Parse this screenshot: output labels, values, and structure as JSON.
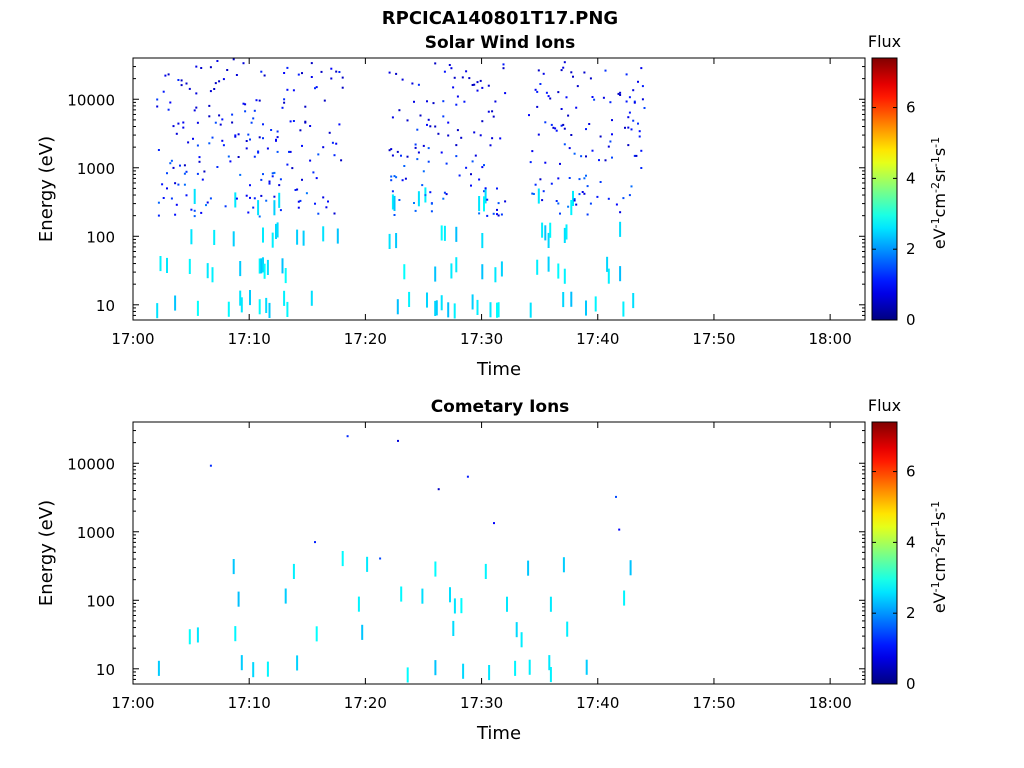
{
  "page_title": "RPCICA140801T17.PNG",
  "colorbar": {
    "title": "Flux",
    "unit_parts": [
      "eV",
      "-1",
      "cm",
      "-2",
      "sr",
      "-1",
      "s",
      "-1"
    ],
    "range": [
      0,
      7.4
    ],
    "ticks": [
      "0",
      "2",
      "4",
      "6"
    ],
    "tick_values": [
      0,
      2,
      4,
      6
    ],
    "colormap": "jet"
  },
  "colors": {
    "low_flux_blue": "#0033ff",
    "mid_flux_blue": "#0080ff",
    "high_flux_cyan": "#00e5e5"
  },
  "chart_data": [
    {
      "type": "heatmap",
      "title": "Solar Wind Ions",
      "xlabel": "Time",
      "ylabel": "Energy (eV)",
      "y_scale": "log",
      "xlim": [
        "17:00",
        "18:03"
      ],
      "ylim": [
        6,
        40000
      ],
      "x_tick_labels": [
        "17:00",
        "17:10",
        "17:20",
        "17:30",
        "17:40",
        "17:50",
        "18:00"
      ],
      "y_tick_labels": [
        "10",
        "100",
        "1000",
        "10000"
      ],
      "y_tick_values": [
        10,
        100,
        1000,
        10000
      ],
      "data_intervals": [
        [
          "17:02",
          "17:18"
        ],
        [
          "17:22",
          "17:32"
        ],
        [
          "17:34",
          "17:44"
        ]
      ],
      "data_gaps": [
        [
          "17:18",
          "17:22"
        ],
        [
          "17:32",
          "17:34"
        ]
      ],
      "flux_range": [
        0.5,
        3
      ]
    },
    {
      "type": "heatmap",
      "title": "Cometary Ions",
      "xlabel": "Time",
      "ylabel": "Energy (eV)",
      "y_scale": "log",
      "xlim": [
        "17:00",
        "18:03"
      ],
      "ylim": [
        6,
        40000
      ],
      "x_tick_labels": [
        "17:00",
        "17:10",
        "17:20",
        "17:30",
        "17:40",
        "17:50",
        "18:00"
      ],
      "y_tick_labels": [
        "10",
        "100",
        "1000",
        "10000"
      ],
      "y_tick_values": [
        10,
        100,
        1000,
        10000
      ],
      "data_interval": [
        "17:02",
        "17:44"
      ],
      "flux_range": [
        0.5,
        3
      ]
    }
  ]
}
